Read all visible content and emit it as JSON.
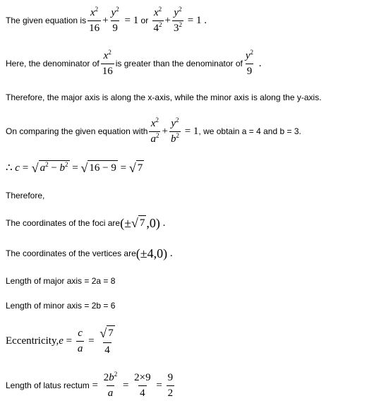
{
  "p1_a": "The given equation is",
  "p1_b": "or",
  "p2_a": "Here, the denominator of",
  "p2_b": "is greater than the denominator of",
  "p3": "Therefore, the major axis is along the x-axis, while the minor axis is along the y-axis.",
  "p4_a": "On comparing the given equation with",
  "p4_b": ", we obtain a = 4 and b = 3.",
  "p5_therefore": "Therefore,",
  "p6_a": "The coordinates of the foci are",
  "p7_a": "The coordinates of the vertices are",
  "p8": "Length of major axis = 2a = 8",
  "p9": "Length of minor axis = 2b = 6",
  "p10_a": "Eccentricity, ",
  "p11_a": "Length of latus rectum ",
  "eq": {
    "n1": "16",
    "n2": "9",
    "n1b": "4",
    "n2b": "3",
    "one": "1",
    "plus": "+",
    "eq": "=",
    "dot": ".",
    "x2": "x",
    "y2": "y",
    "sq": "2",
    "a2": "a",
    "b2": "b",
    "c": "c",
    "a": "a",
    "b": "b",
    "minus": "−",
    "sixteen_minus_nine": "16 − 9",
    "rt7": "7",
    "pm": "±",
    "four": "4",
    "zero": "0",
    "comma": ",",
    "lpar": "(",
    "rpar": ")",
    "e": "e",
    "two": "2",
    "nine": "9",
    "times": "×",
    "half9": "9",
    "half2": "2",
    "eighteen_over4_num": "2×9",
    "therefore": "∴"
  }
}
